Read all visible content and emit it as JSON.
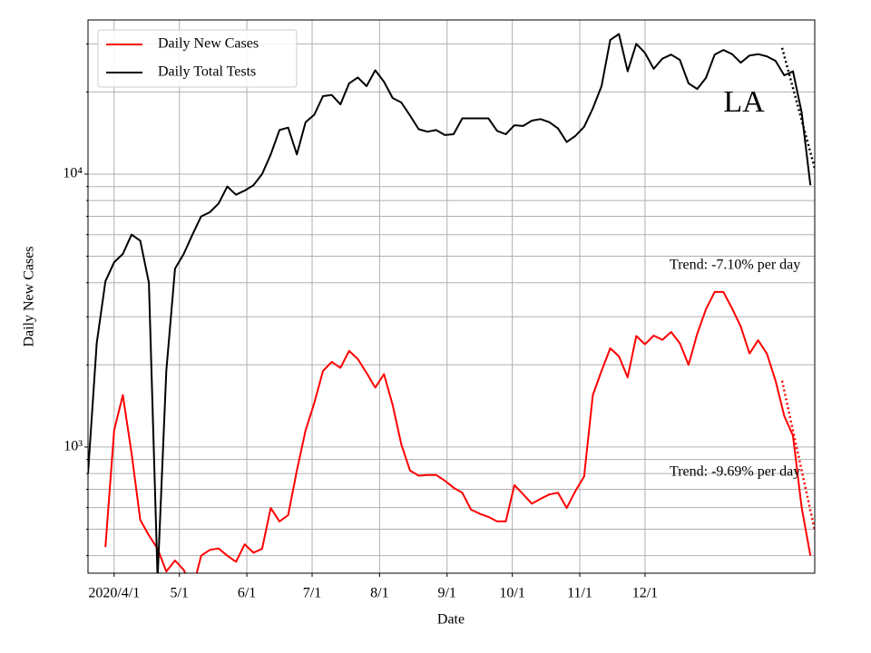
{
  "chart_data": {
    "type": "line",
    "xlabel": "Date",
    "ylabel": "Daily New Cases",
    "x": [
      "2020-03-20",
      "2020-03-24",
      "2020-03-28",
      "2020-04-01",
      "2020-04-05",
      "2020-04-09",
      "2020-04-13",
      "2020-04-17",
      "2020-04-21",
      "2020-04-25",
      "2020-04-29",
      "2020-05-03",
      "2020-05-07",
      "2020-05-11",
      "2020-05-15",
      "2020-05-19",
      "2020-05-23",
      "2020-05-27",
      "2020-05-31",
      "2020-06-04",
      "2020-06-08",
      "2020-06-12",
      "2020-06-16",
      "2020-06-20",
      "2020-06-24",
      "2020-06-28",
      "2020-07-02",
      "2020-07-06",
      "2020-07-10",
      "2020-07-14",
      "2020-07-18",
      "2020-07-22",
      "2020-07-26",
      "2020-07-30",
      "2020-08-03",
      "2020-08-07",
      "2020-08-11",
      "2020-08-15",
      "2020-08-19",
      "2020-08-23",
      "2020-08-27",
      "2020-08-31",
      "2020-09-04",
      "2020-09-08",
      "2020-09-12",
      "2020-09-16",
      "2020-09-20",
      "2020-09-24",
      "2020-09-28",
      "2020-10-02",
      "2020-10-06",
      "2020-10-10",
      "2020-10-14",
      "2020-10-18",
      "2020-10-22",
      "2020-10-26",
      "2020-10-30",
      "2020-11-03",
      "2020-11-07",
      "2020-11-11",
      "2020-11-15",
      "2020-11-19",
      "2020-11-23",
      "2020-11-27",
      "2020-12-01",
      "2020-12-05",
      "2020-12-09",
      "2020-12-13",
      "2020-12-17",
      "2020-12-21",
      "2020-12-25",
      "2020-12-29",
      "2021-01-02",
      "2021-01-06",
      "2021-01-10",
      "2021-01-14",
      "2021-01-18",
      "2021-01-22",
      "2021-01-26",
      "2021-01-30",
      "2021-02-03",
      "2021-02-07",
      "2021-02-11",
      "2021-02-15"
    ],
    "series": [
      {
        "name": "Daily New Cases",
        "color": "#ff0000",
        "values": [
          null,
          null,
          430,
          1150,
          1550,
          950,
          540,
          475,
          424,
          350,
          384,
          355,
          300,
          400,
          420,
          425,
          400,
          380,
          440,
          410,
          424,
          598,
          534,
          563,
          820,
          1150,
          1450,
          1900,
          2050,
          1950,
          2250,
          2100,
          1870,
          1650,
          1850,
          1430,
          1023,
          820,
          785,
          790,
          790,
          753,
          710,
          680,
          590,
          570,
          555,
          534,
          534,
          725,
          672,
          620,
          646,
          670,
          680,
          598,
          690,
          780,
          1550,
          1900,
          2300,
          2150,
          1800,
          2550,
          2380,
          2560,
          2470,
          2640,
          2400,
          2000,
          2600,
          3200,
          3700,
          3700,
          3220,
          2760,
          2200,
          2460,
          2200,
          1750,
          1300,
          1100,
          600,
          400
        ]
      },
      {
        "name": "Daily Total Tests",
        "color": "#000000",
        "values": [
          800,
          2400,
          4050,
          4750,
          5100,
          6000,
          5700,
          4000,
          330,
          1900,
          4500,
          5100,
          6000,
          7000,
          7250,
          7800,
          9000,
          8400,
          8700,
          9100,
          10000,
          11800,
          14500,
          14800,
          11800,
          15500,
          16500,
          19300,
          19500,
          18000,
          21500,
          22600,
          21000,
          24000,
          21800,
          19000,
          18300,
          16400,
          14600,
          14300,
          14500,
          13900,
          14000,
          16000,
          16000,
          16000,
          16000,
          14400,
          14000,
          15100,
          15000,
          15700,
          15900,
          15500,
          14700,
          13100,
          13800,
          14900,
          17400,
          21000,
          31000,
          32600,
          23800,
          30000,
          27800,
          24300,
          26500,
          27400,
          26200,
          21500,
          20500,
          22500,
          27400,
          28500,
          27500,
          25600,
          27200,
          27500,
          27000,
          26000,
          23000,
          23800,
          16800,
          9100
        ]
      }
    ],
    "trend_lines": [
      {
        "color": "#000000",
        "x": [
          "2021-02-02",
          "2021-02-17"
        ],
        "values": [
          29000,
          10500
        ]
      },
      {
        "color": "#ff0000",
        "x": [
          "2021-02-02",
          "2021-02-17"
        ],
        "values": [
          1750,
          495
        ]
      }
    ],
    "annotations": [
      "LA",
      "Trend: -7.10% per day",
      "Trend: -9.69% per day"
    ],
    "xlim": [
      "2020-03-20",
      "2021-02-17"
    ],
    "xticks": [
      {
        "value": "2020-04-01",
        "label": "2020/4/1"
      },
      {
        "value": "2020-05-01",
        "label": "5/1"
      },
      {
        "value": "2020-06-01",
        "label": "6/1"
      },
      {
        "value": "2020-07-01",
        "label": "7/1"
      },
      {
        "value": "2020-08-01",
        "label": "8/1"
      },
      {
        "value": "2020-09-01",
        "label": "9/1"
      },
      {
        "value": "2020-10-01",
        "label": "10/1"
      },
      {
        "value": "2020-11-01",
        "label": "11/1"
      },
      {
        "value": "2020-12-01",
        "label": "12/1"
      }
    ],
    "ylim": [
      345,
      36700
    ],
    "yscale": "log",
    "yticks": [
      {
        "value": 1000,
        "label": "10³"
      },
      {
        "value": 10000,
        "label": "10⁴"
      }
    ],
    "yminor_ticks": [
      400,
      500,
      600,
      700,
      800,
      900,
      2000,
      3000,
      4000,
      5000,
      6000,
      7000,
      8000,
      9000,
      20000,
      30000
    ],
    "grid": true,
    "legend": "upper left"
  }
}
